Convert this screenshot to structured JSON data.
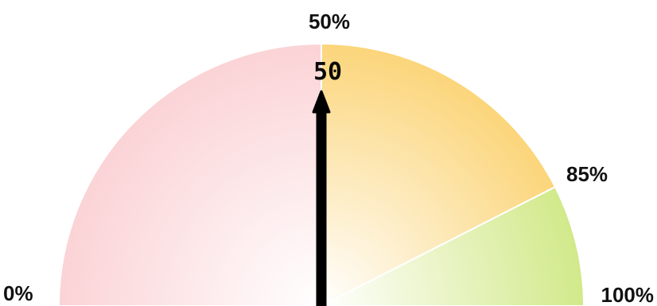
{
  "chart_data": {
    "type": "gauge",
    "min": 0,
    "max": 100,
    "value": 50,
    "value_label": "50",
    "bands": [
      {
        "from": 0,
        "to": 50,
        "color": "#fbd3d6",
        "inner_color": "#ffffff"
      },
      {
        "from": 50,
        "to": 85,
        "color": "#fbd57a",
        "inner_color": "#ffffff"
      },
      {
        "from": 85,
        "to": 100,
        "color": "#d2e98a",
        "inner_color": "#ffffff"
      }
    ],
    "tick_labels": [
      {
        "value": 0,
        "text": "0%"
      },
      {
        "value": 50,
        "text": "50%"
      },
      {
        "value": 85,
        "text": "85%"
      },
      {
        "value": 100,
        "text": "100%"
      }
    ],
    "needle_color": "#000000"
  }
}
